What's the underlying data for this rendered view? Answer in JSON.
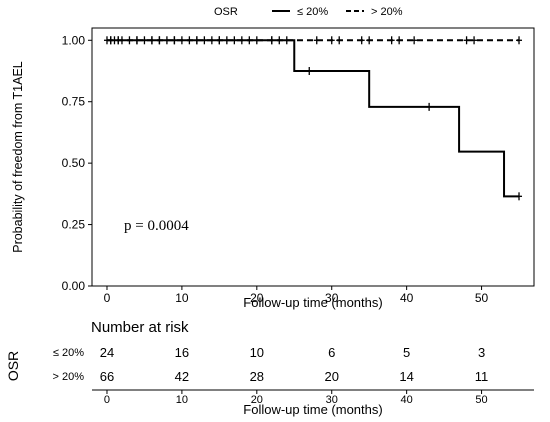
{
  "chart_data": {
    "type": "line",
    "subtype": "kaplan-meier",
    "legend": {
      "title": "OSR",
      "position": "top",
      "entries": [
        {
          "label": "≤ 20%",
          "style": "solid"
        },
        {
          "label": "> 20%",
          "style": "dashed"
        }
      ]
    },
    "ylabel": "Probability of freedom from T1AEL",
    "xlabel": "Follow-up time (months)",
    "xlim": [
      -2,
      57
    ],
    "ylim": [
      0,
      1.05
    ],
    "x_ticks": [
      0,
      10,
      20,
      30,
      40,
      50
    ],
    "y_ticks": [
      0.0,
      0.25,
      0.5,
      0.75,
      1.0
    ],
    "y_tick_labels": [
      "0.00",
      "0.25",
      "0.50",
      "0.75",
      "1.00"
    ],
    "grid": false,
    "annotation": "p = 0.0004",
    "series": [
      {
        "name": "≤ 20%",
        "style": "solid",
        "steps": [
          [
            0,
            1.0
          ],
          [
            25,
            0.875
          ],
          [
            35,
            0.729
          ],
          [
            47,
            0.547
          ],
          [
            53,
            0.365
          ],
          [
            55,
            0.365
          ]
        ],
        "censor_x": [
          0.5,
          1.5,
          4,
          6,
          7,
          9,
          12,
          15,
          22,
          27,
          43,
          55
        ]
      },
      {
        "name": "> 20%",
        "style": "dashed",
        "steps": [
          [
            0,
            1.0
          ],
          [
            55,
            1.0
          ]
        ],
        "censor_x": [
          0,
          0.5,
          1,
          1.5,
          2,
          3,
          4,
          5,
          6,
          7,
          8,
          9,
          10,
          11,
          12,
          13,
          14,
          15,
          16,
          17,
          18,
          19,
          20,
          22,
          23,
          24,
          28,
          30,
          31,
          34,
          35,
          38,
          39,
          41,
          48,
          49,
          55
        ]
      }
    ],
    "risk_table": {
      "title": "Number at risk",
      "group_label": "OSR",
      "x_ticks": [
        0,
        10,
        20,
        30,
        40,
        50
      ],
      "xlabel": "Follow-up time (months)",
      "rows": [
        {
          "label": "≤ 20%",
          "values": [
            "24",
            "16",
            "10",
            "6",
            "5",
            "3"
          ]
        },
        {
          "label": "> 20%",
          "values": [
            "66",
            "42",
            "28",
            "20",
            "14",
            "11"
          ]
        }
      ]
    }
  }
}
